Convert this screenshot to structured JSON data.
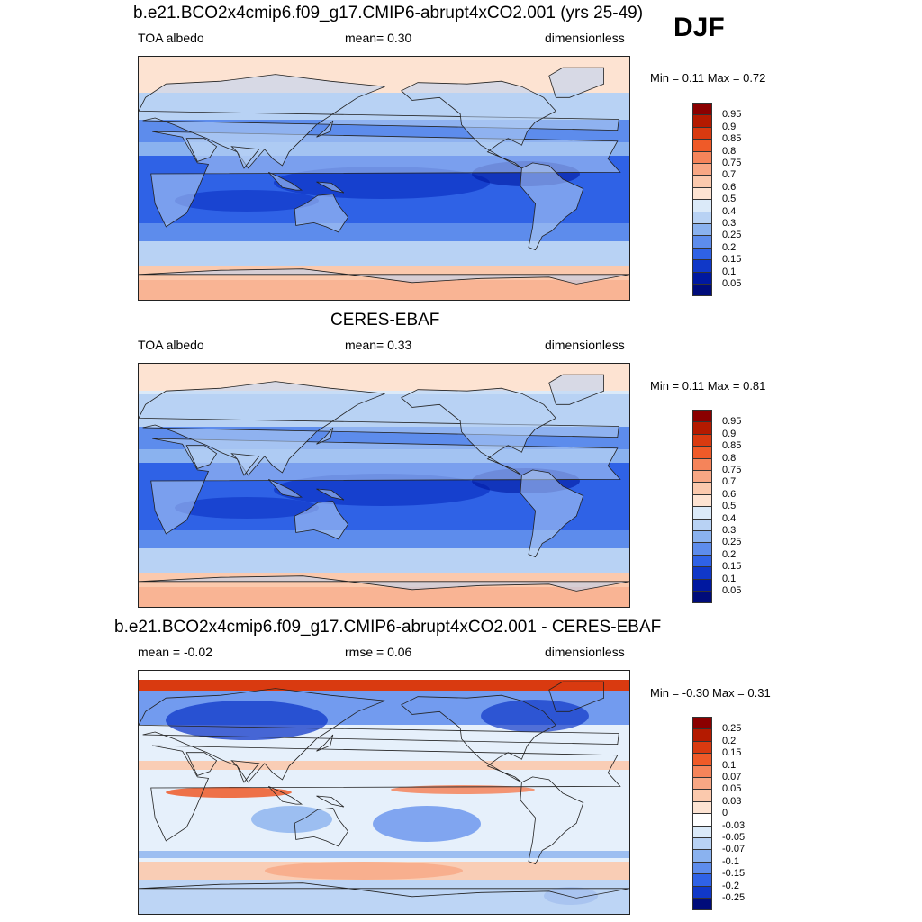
{
  "season": "DJF",
  "panels": [
    {
      "title": "b.e21.BCO2x4cmip6.f09_g17.CMIP6-abrupt4xCO2.001 (yrs 25-49)",
      "left_label": "TOA albedo",
      "center_label": "mean=   0.30",
      "right_label": "dimensionless",
      "minmax": "Min =   0.11 Max =   0.72",
      "colorbar": {
        "levels": [
          "0.95",
          "0.9",
          "0.85",
          "0.8",
          "0.75",
          "0.7",
          "0.6",
          "0.5",
          "0.4",
          "0.3",
          "0.25",
          "0.2",
          "0.15",
          "0.1",
          "0.05"
        ],
        "colors": [
          "#8b0000",
          "#b41a00",
          "#d93a10",
          "#ef5a28",
          "#f5845a",
          "#f8a784",
          "#fbc9ad",
          "#fde3d2",
          "#dbeaf9",
          "#b8d2f4",
          "#8ab2ef",
          "#5d8cec",
          "#2f62e6",
          "#1038c8",
          "#0018a0",
          "#000c7a"
        ]
      },
      "map_style": "albedo_model"
    },
    {
      "title": "CERES-EBAF",
      "left_label": "TOA albedo",
      "center_label": "mean=   0.33",
      "right_label": "dimensionless",
      "minmax": "Min =   0.11 Max =   0.81",
      "colorbar": {
        "levels": [
          "0.95",
          "0.9",
          "0.85",
          "0.8",
          "0.75",
          "0.7",
          "0.6",
          "0.5",
          "0.4",
          "0.3",
          "0.25",
          "0.2",
          "0.15",
          "0.1",
          "0.05"
        ],
        "colors": [
          "#8b0000",
          "#b41a00",
          "#d93a10",
          "#ef5a28",
          "#f5845a",
          "#f8a784",
          "#fbc9ad",
          "#fde3d2",
          "#dbeaf9",
          "#b8d2f4",
          "#8ab2ef",
          "#5d8cec",
          "#2f62e6",
          "#1038c8",
          "#0018a0",
          "#000c7a"
        ]
      },
      "map_style": "albedo_obs"
    },
    {
      "title": "b.e21.BCO2x4cmip6.f09_g17.CMIP6-abrupt4xCO2.001 - CERES-EBAF",
      "left_label": "mean =  -0.02",
      "center_label": "rmse =   0.06",
      "right_label": "dimensionless",
      "minmax": "Min =  -0.30 Max =   0.31",
      "colorbar": {
        "levels": [
          "0.25",
          "0.2",
          "0.15",
          "0.1",
          "0.07",
          "0.05",
          "0.03",
          "0",
          "-0.03",
          "-0.05",
          "-0.07",
          "-0.1",
          "-0.15",
          "-0.2",
          "-0.25"
        ],
        "colors": [
          "#8b0000",
          "#b41a00",
          "#d93a10",
          "#ef5a28",
          "#f5845a",
          "#f8a784",
          "#fbc9ad",
          "#fde3d2",
          "#ffffff",
          "#dbeaf9",
          "#b8d2f4",
          "#8ab2ef",
          "#5d8cec",
          "#2f62e6",
          "#1038c8",
          "#000c7a"
        ]
      },
      "map_style": "difference"
    }
  ]
}
